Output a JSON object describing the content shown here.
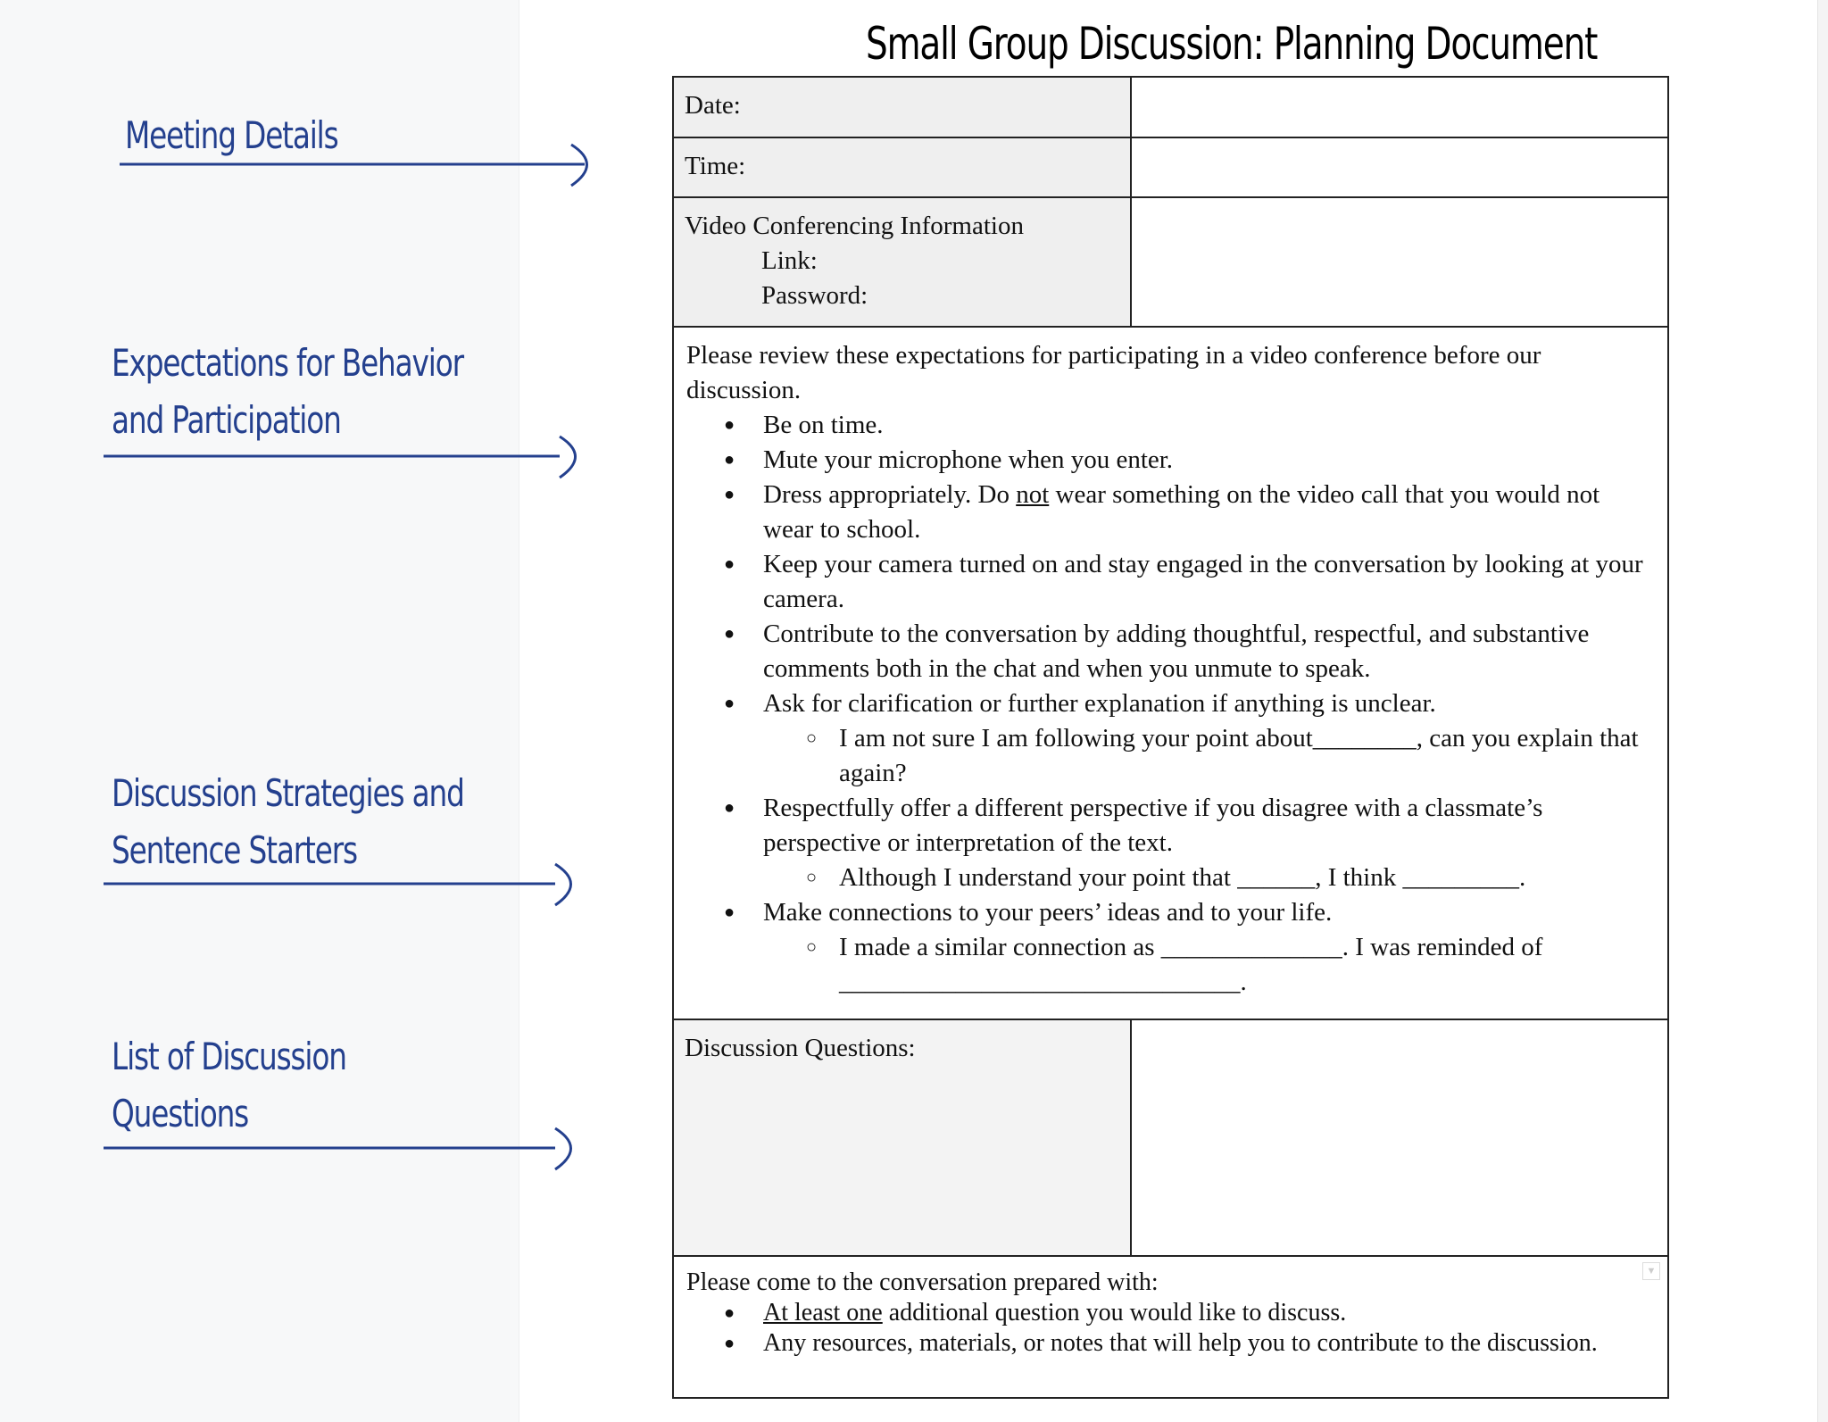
{
  "title": "Small Group Discussion: Planning Document",
  "side_labels": [
    {
      "lines": [
        "Meeting Details"
      ]
    },
    {
      "lines": [
        "Expectations for Behavior",
        "and Participation"
      ]
    },
    {
      "lines": [
        "Discussion Strategies and",
        "Sentence Starters"
      ]
    },
    {
      "lines": [
        "List of Discussion",
        "Questions"
      ]
    }
  ],
  "accent_color": "#24408e",
  "table": {
    "date_label": "Date:",
    "time_label": "Time:",
    "video_label": "Video Conferencing Information",
    "link_label": "Link:",
    "password_label": "Password:",
    "expectations": {
      "intro": "Please review these expectations for participating in a video conference before our discussion.",
      "b1": "Be on time.",
      "b2": "Mute your microphone when you enter.",
      "b3_pre": "Dress appropriately. Do ",
      "b3_u": "not",
      "b3_post": " wear something on the video call that you would not wear to school.",
      "b4": "Keep your camera turned on and stay engaged in the conversation by looking at your camera.",
      "b5": "Contribute to the conversation by adding thoughtful, respectful, and substantive comments both in the chat and when you unmute to speak.",
      "b6": "Ask for clarification or further explanation if anything is unclear.",
      "b6_sub": "I am not sure I am following your point about________, can you explain that again?",
      "b7": "Respectfully offer a different perspective if you disagree with a classmate’s perspective or interpretation of the text.",
      "b7_sub": "Although I understand your point that ______, I think _________.",
      "b8": "Make connections to your peers’ ideas and to your life.",
      "b8_sub": "I made a similar connection as ______________. I was reminded of _______________________________."
    },
    "questions_label": "Discussion Questions:",
    "prepared": {
      "intro": "Please come to the conversation prepared with:",
      "b1_u": "At least one",
      "b1_post": " additional question you would like to discuss.",
      "b2": "Any resources, materials, or notes that will help you to contribute to the discussion."
    }
  }
}
